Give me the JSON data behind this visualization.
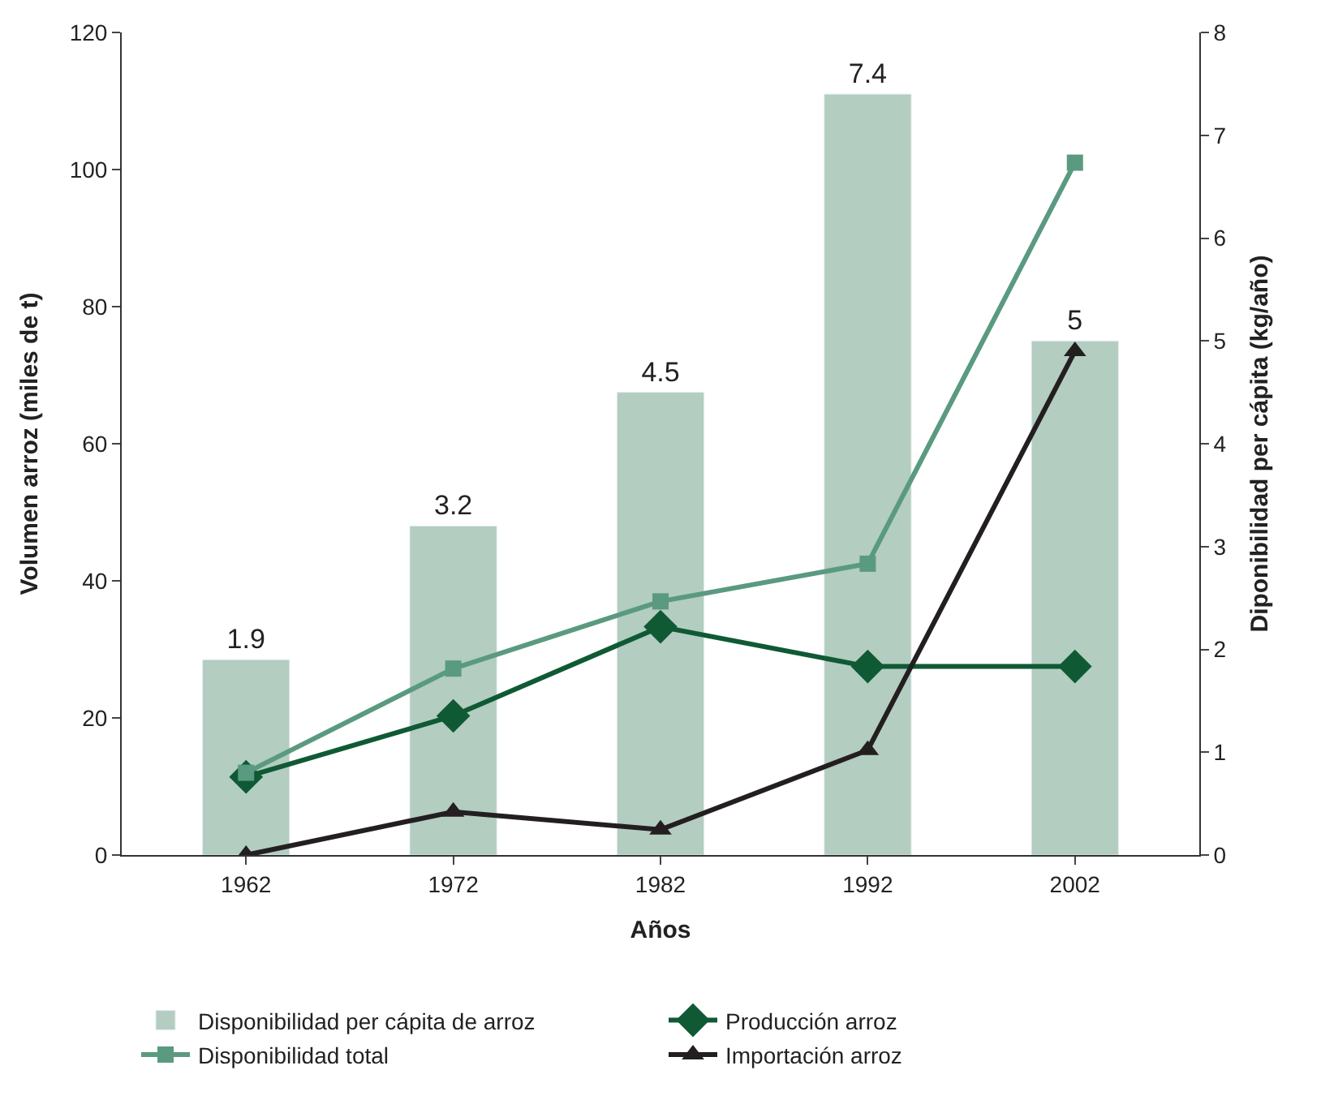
{
  "chart_data": {
    "type": "line",
    "xlabel": "Años",
    "ylabel": "Volumen arroz (miles de t)",
    "y2label": "Diponibilidad per cápita (kg/año)",
    "categories": [
      "1962",
      "1972",
      "1982",
      "1992",
      "2002"
    ],
    "series": [
      {
        "name": "Disponibilidad per cápita de arroz",
        "type": "bar",
        "axis": "y2",
        "color": "#b3cdc0",
        "values": [
          1.9,
          3.2,
          4.5,
          7.4,
          5
        ],
        "value_labels": [
          "1.9",
          "3.2",
          "4.5",
          "7.4",
          "5"
        ]
      },
      {
        "name": "Producción arroz",
        "marker": "diamond",
        "color": "#0f5a35",
        "values": [
          11.4,
          20.3,
          33.3,
          27.5,
          27.5
        ]
      },
      {
        "name": "Disponibilidad total",
        "marker": "square",
        "color": "#5a9a80",
        "values": [
          12,
          27.2,
          37,
          42.5,
          101
        ]
      },
      {
        "name": "Importación arroz",
        "marker": "triangle",
        "color": "#231f20",
        "values": [
          0,
          6.3,
          3.7,
          15.3,
          73.5
        ]
      }
    ],
    "ylim": [
      0,
      120
    ],
    "yticks": [
      0,
      20,
      40,
      60,
      80,
      100,
      120
    ],
    "y2lim": [
      0,
      8
    ],
    "y2ticks": [
      0,
      1,
      2,
      3,
      4,
      5,
      6,
      7,
      8
    ],
    "legend": "bottom"
  }
}
